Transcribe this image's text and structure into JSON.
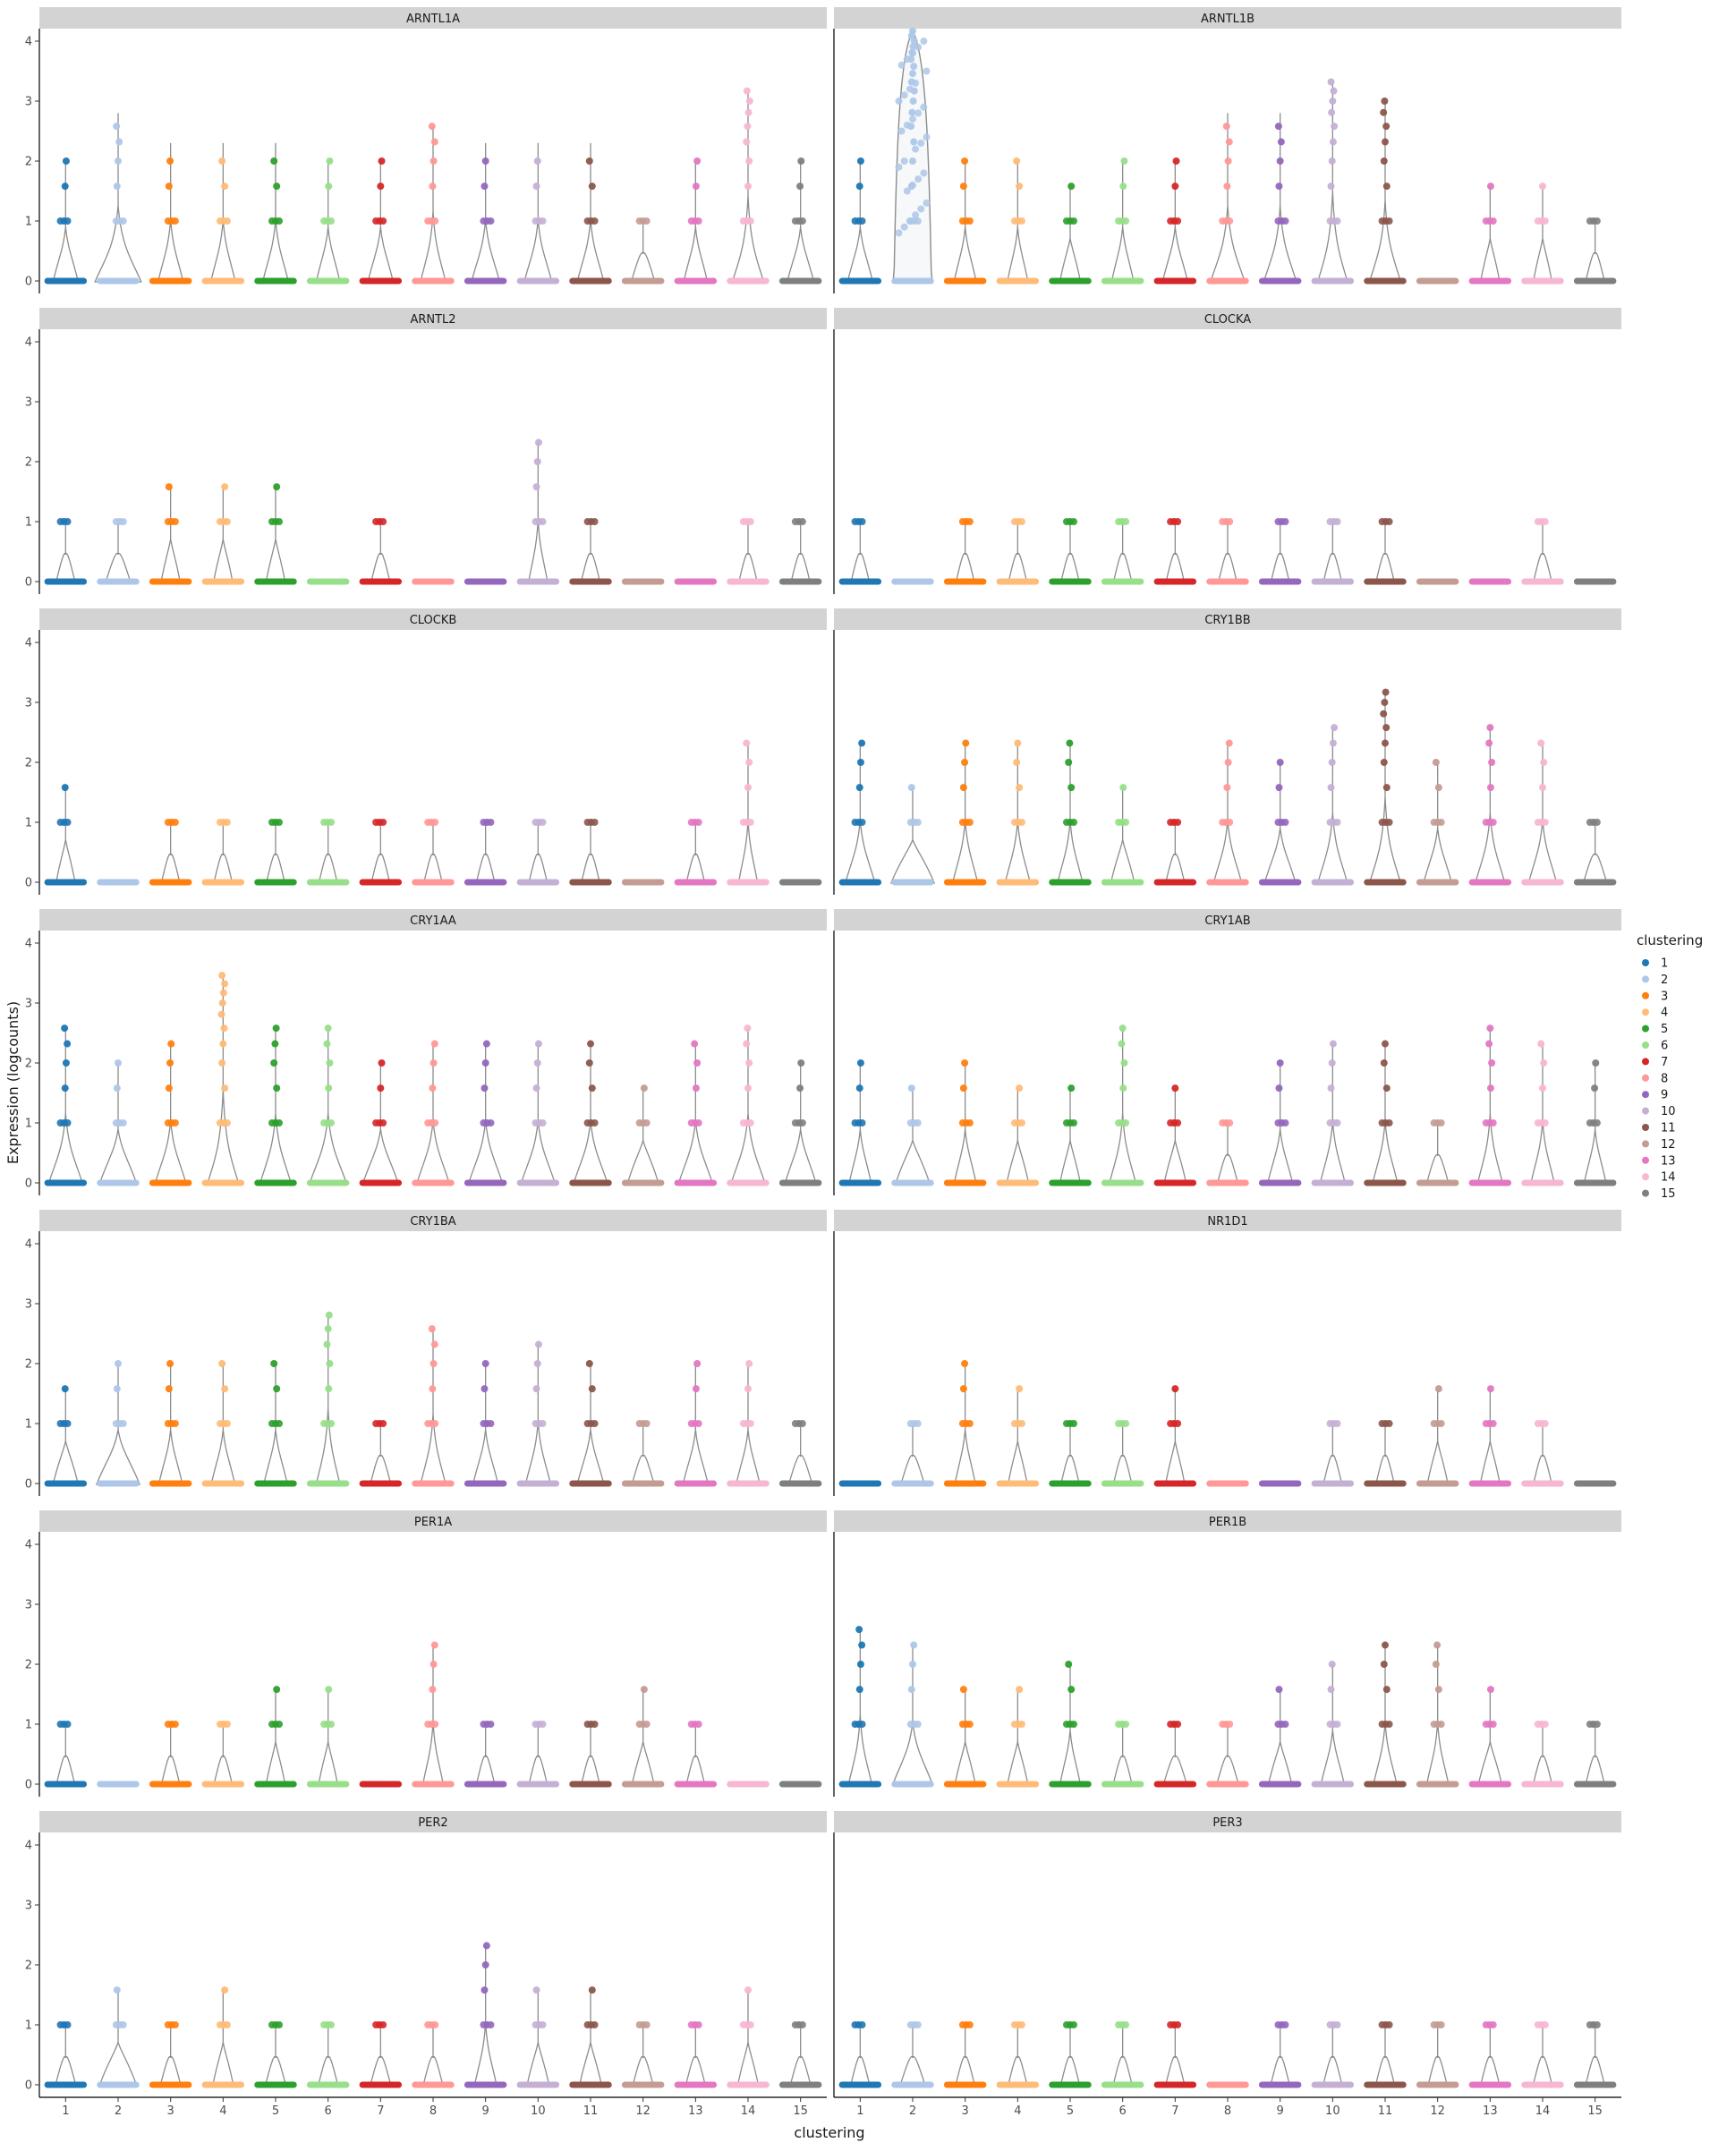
{
  "chart_data": {
    "type": "violin",
    "xlabel": "clustering",
    "ylabel": "Expression (logcounts)",
    "ylim": [
      0,
      4.3
    ],
    "y_ticks": [
      0,
      1,
      2,
      3,
      4
    ],
    "categories": [
      "1",
      "2",
      "3",
      "4",
      "5",
      "6",
      "7",
      "8",
      "9",
      "10",
      "11",
      "12",
      "13",
      "14",
      "15"
    ],
    "legend": {
      "title": "clustering",
      "position": "right",
      "entries": [
        "1",
        "2",
        "3",
        "4",
        "5",
        "6",
        "7",
        "8",
        "9",
        "10",
        "11",
        "12",
        "13",
        "14",
        "15"
      ]
    },
    "colors": [
      "#1f77b4",
      "#aec7e8",
      "#ff7f0e",
      "#ffbb78",
      "#2ca02c",
      "#98df8a",
      "#d62728",
      "#ff9896",
      "#9467bd",
      "#c5b0d5",
      "#8c564b",
      "#c49c94",
      "#e377c2",
      "#f7b6d2",
      "#7f7f7f"
    ],
    "grid": false,
    "panels": [
      {
        "gene": "ARNTL1A",
        "max": [
          2,
          2.8,
          2.3,
          2.3,
          2.3,
          2,
          2,
          2.58,
          2.3,
          2.3,
          2.3,
          1,
          2,
          3.17,
          2
        ],
        "spread": [
          0.3,
          1.0,
          0.3,
          0.28,
          0.32,
          0.25,
          0.3,
          0.3,
          0.4,
          0.38,
          0.35,
          0.25,
          0.25,
          0.5,
          0.35
        ]
      },
      {
        "gene": "ARNTL1B",
        "max": [
          2,
          4.17,
          2,
          2,
          1.58,
          2,
          2,
          2.8,
          2.8,
          3.32,
          3,
          0,
          1.58,
          1.58,
          1
        ],
        "spread": [
          0.3,
          4.0,
          0.2,
          0.15,
          0.15,
          0.2,
          0.3,
          0.6,
          0.55,
          0.45,
          0.5,
          0.08,
          0.1,
          0.08,
          0.1
        ]
      },
      {
        "gene": "ARNTL2",
        "max": [
          1,
          1,
          1.58,
          1.58,
          1.58,
          0,
          1,
          0,
          0,
          2.32,
          1,
          0,
          0,
          1,
          1
        ],
        "spread": [
          0.1,
          0.3,
          0.1,
          0.1,
          0.1,
          0.05,
          0.1,
          0.05,
          0.05,
          0.1,
          0.1,
          0.05,
          0.05,
          0.05,
          0.1
        ]
      },
      {
        "gene": "CLOCKA",
        "max": [
          1,
          0,
          1,
          1,
          1,
          1,
          1,
          1,
          1,
          1,
          1,
          0,
          0,
          1,
          0
        ],
        "spread": [
          0.08,
          0.05,
          0.08,
          0.08,
          0.08,
          0.08,
          0.08,
          0.08,
          0.08,
          0.08,
          0.08,
          0.05,
          0.05,
          0.08,
          0.05
        ]
      },
      {
        "gene": "CLOCKB",
        "max": [
          1.58,
          0,
          1,
          1,
          1,
          1,
          1,
          1,
          1,
          1,
          1,
          0,
          1,
          2.32,
          0
        ],
        "spread": [
          0.1,
          0.05,
          0.08,
          0.08,
          0.08,
          0.08,
          0.08,
          0.08,
          0.08,
          0.08,
          0.08,
          0.05,
          0.08,
          0.1,
          0.05
        ]
      },
      {
        "gene": "CRY1BB",
        "max": [
          2.32,
          1.58,
          2.32,
          2.32,
          2.32,
          1.58,
          1,
          2.32,
          2,
          2.58,
          3.17,
          2,
          2.58,
          2.32,
          1
        ],
        "spread": [
          0.45,
          0.9,
          0.3,
          0.3,
          0.3,
          0.25,
          0.1,
          0.4,
          0.5,
          0.45,
          0.5,
          0.4,
          0.45,
          0.4,
          0.25
        ]
      },
      {
        "gene": "CRY1AA",
        "max": [
          2.58,
          2,
          2.32,
          3.46,
          2.58,
          2.58,
          2,
          2.32,
          2.32,
          2.32,
          2.32,
          1.58,
          2.32,
          2.58,
          2
        ],
        "spread": [
          0.6,
          0.7,
          0.5,
          0.5,
          0.5,
          0.7,
          0.65,
          0.55,
          0.6,
          0.6,
          0.6,
          0.5,
          0.6,
          0.6,
          0.5
        ]
      },
      {
        "gene": "CRY1AB",
        "max": [
          2,
          1.58,
          2,
          1.58,
          1.58,
          2.58,
          1.58,
          1,
          2,
          2.32,
          2.32,
          1,
          2.58,
          2.32,
          2
        ],
        "spread": [
          0.2,
          0.6,
          0.2,
          0.2,
          0.15,
          0.35,
          0.2,
          0.15,
          0.3,
          0.3,
          0.3,
          0.2,
          0.3,
          0.25,
          0.2
        ]
      },
      {
        "gene": "CRY1BA",
        "max": [
          1.58,
          2,
          2,
          2,
          2,
          2.81,
          1,
          2.58,
          2,
          2.32,
          2,
          1,
          2,
          2,
          1
        ],
        "spread": [
          0.3,
          0.9,
          0.25,
          0.25,
          0.25,
          0.25,
          0.15,
          0.3,
          0.3,
          0.3,
          0.35,
          0.2,
          0.3,
          0.25,
          0.25
        ]
      },
      {
        "gene": "NR1D1",
        "max": [
          0,
          1,
          2,
          1.58,
          1,
          1,
          1.58,
          0,
          0,
          1,
          1,
          1.58,
          1.58,
          1,
          0
        ],
        "spread": [
          0.05,
          0.25,
          0.15,
          0.1,
          0.08,
          0.08,
          0.1,
          0.05,
          0.05,
          0.08,
          0.08,
          0.15,
          0.12,
          0.08,
          0.05
        ]
      },
      {
        "gene": "PER1A",
        "max": [
          1,
          0,
          1,
          1,
          1.58,
          1.58,
          0,
          2.32,
          1,
          1,
          1,
          1.58,
          1,
          0,
          0
        ],
        "spread": [
          0.08,
          0.05,
          0.08,
          0.08,
          0.1,
          0.1,
          0.05,
          0.15,
          0.08,
          0.08,
          0.08,
          0.2,
          0.08,
          0.05,
          0.05
        ]
      },
      {
        "gene": "PER1B",
        "max": [
          2.58,
          2.32,
          1.58,
          1.58,
          2,
          1,
          1,
          1,
          1.58,
          2,
          2.32,
          2.32,
          1.58,
          1,
          1
        ],
        "spread": [
          0.25,
          0.8,
          0.15,
          0.15,
          0.15,
          0.1,
          0.25,
          0.2,
          0.25,
          0.25,
          0.25,
          0.2,
          0.25,
          0.1,
          0.1
        ]
      },
      {
        "gene": "PER2",
        "max": [
          1,
          1.58,
          1,
          1.58,
          1,
          1,
          1,
          1,
          2.32,
          1.58,
          1.58,
          1,
          1,
          1.58,
          1
        ],
        "spread": [
          0.15,
          0.7,
          0.15,
          0.15,
          0.15,
          0.12,
          0.15,
          0.12,
          0.2,
          0.2,
          0.2,
          0.15,
          0.12,
          0.15,
          0.15
        ]
      },
      {
        "gene": "PER3",
        "max": [
          1,
          1,
          1,
          1,
          1,
          1,
          1,
          0,
          1,
          1,
          1,
          1,
          1,
          1,
          1
        ],
        "spread": [
          0.1,
          0.3,
          0.1,
          0.1,
          0.1,
          0.1,
          0.1,
          0.05,
          0.1,
          0.1,
          0.1,
          0.1,
          0.1,
          0.1,
          0.1
        ]
      }
    ]
  }
}
